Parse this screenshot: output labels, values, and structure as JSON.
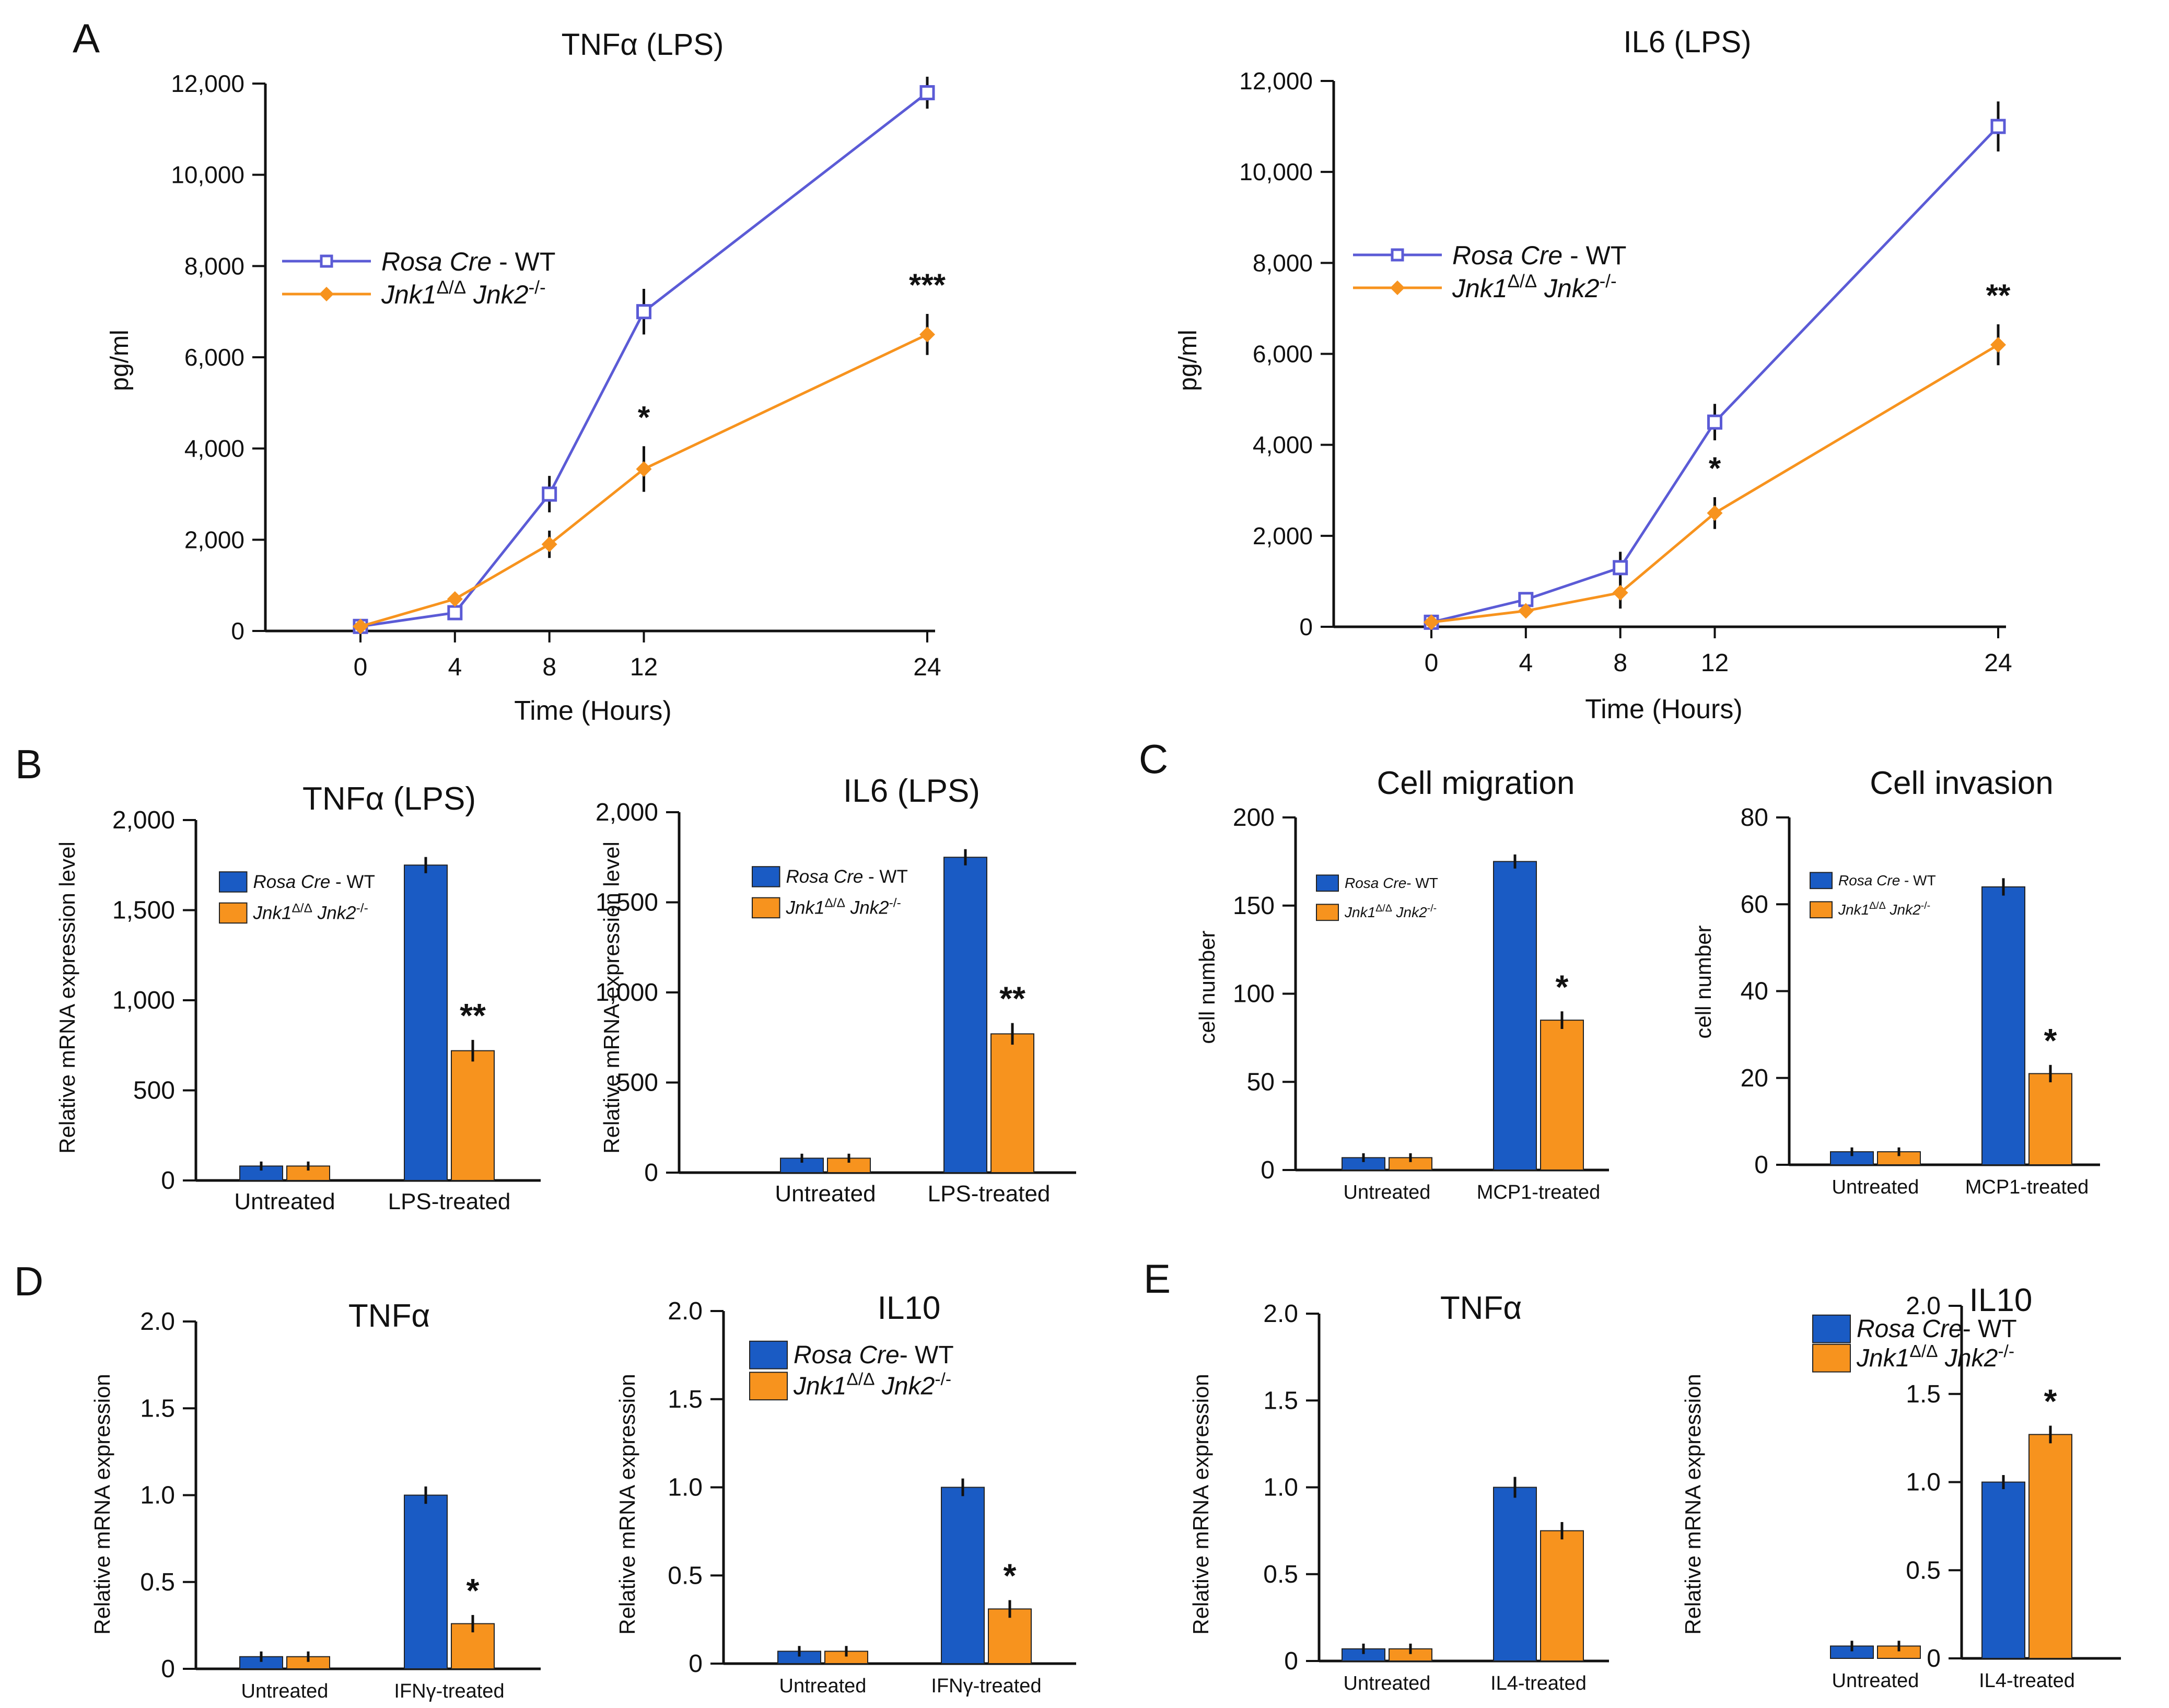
{
  "colors": {
    "wt": "#1a5bc4",
    "ko": "#f7931e",
    "line_wt": "#5b5bd6",
    "line_ko": "#f7931e",
    "axis": "#111111"
  },
  "legend_full": {
    "wt_italic": "Rosa Cre",
    "wt_plain": " - WT",
    "ko_a": "Jnk1",
    "ko_a_sup": "Δ/Δ",
    "ko_b": " Jnk2",
    "ko_b_sup": "-/-"
  },
  "legend_tight": {
    "wt_italic": "Rosa Cre",
    "wt_plain": "- WT",
    "ko_a": "Jnk1",
    "ko_a_sup": "Δ/Δ",
    "ko_b": " Jnk2",
    "ko_b_sup": "-/-"
  },
  "chart_data": [
    {
      "panel_letter": "A",
      "type": "line",
      "title": "TNFα (LPS)",
      "xlabel": "Time (Hours)",
      "ylabel": "pg/ml",
      "x": [
        0,
        4,
        8,
        12,
        24
      ],
      "xlim": [
        -4,
        25
      ],
      "ylim": [
        0,
        12000
      ],
      "y_ticks": [
        0,
        2000,
        4000,
        6000,
        8000,
        10000,
        12000
      ],
      "y_tick_labels": [
        "0",
        "2,000",
        "4,000",
        "6,000",
        "8,000",
        "10,000",
        "12,000"
      ],
      "legend_style": "full",
      "series": [
        {
          "name": "Rosa Cre - WT",
          "values": [
            100,
            400,
            3000,
            7000,
            11800
          ],
          "errors": [
            80,
            120,
            400,
            500,
            350
          ]
        },
        {
          "name": "Jnk1Δ/Δ Jnk2-/-",
          "values": [
            100,
            700,
            1900,
            3550,
            6500
          ],
          "errors": [
            80,
            100,
            300,
            500,
            450
          ]
        }
      ],
      "significance": [
        {
          "x": 12,
          "label": "*"
        },
        {
          "x": 24,
          "label": "***"
        }
      ]
    },
    {
      "panel_letter": "",
      "type": "line",
      "title": "IL6 (LPS)",
      "xlabel": "Time (Hours)",
      "ylabel": "pg/ml",
      "x": [
        0,
        4,
        8,
        12,
        24
      ],
      "xlim": [
        -4,
        25
      ],
      "ylim": [
        0,
        12000
      ],
      "y_ticks": [
        0,
        2000,
        4000,
        6000,
        8000,
        10000,
        12000
      ],
      "y_tick_labels": [
        "0",
        "2,000",
        "4,000",
        "6,000",
        "8,000",
        "10,000",
        "12,000"
      ],
      "legend_style": "full",
      "series": [
        {
          "name": "Rosa Cre - WT",
          "values": [
            100,
            600,
            1300,
            4500,
            11000
          ],
          "errors": [
            80,
            100,
            350,
            400,
            550
          ]
        },
        {
          "name": "Jnk1Δ/Δ Jnk2-/-",
          "values": [
            100,
            350,
            750,
            2500,
            6200
          ],
          "errors": [
            80,
            100,
            350,
            350,
            450
          ]
        }
      ],
      "significance": [
        {
          "x": 12,
          "label": "*"
        },
        {
          "x": 24,
          "label": "**"
        }
      ]
    },
    {
      "panel_letter": "B",
      "type": "bar",
      "title": "TNFα (LPS)",
      "xlabel": "",
      "ylabel": "Relative mRNA expression level",
      "categories": [
        "Untreated",
        "LPS-treated"
      ],
      "ylim": [
        0,
        2000
      ],
      "y_ticks": [
        0,
        500,
        1000,
        1500,
        2000
      ],
      "y_tick_labels": [
        "0",
        "500",
        "1,000",
        "1,500",
        "2,000"
      ],
      "legend_style": "full",
      "series": [
        {
          "name": "Rosa Cre - WT",
          "values": [
            80,
            1750
          ],
          "errors": [
            25,
            45
          ]
        },
        {
          "name": "Jnk1Δ/Δ Jnk2-/-",
          "values": [
            80,
            720
          ],
          "errors": [
            25,
            60
          ]
        }
      ],
      "significance": [
        {
          "category": 1,
          "series": 1,
          "label": "**"
        }
      ]
    },
    {
      "panel_letter": "",
      "type": "bar",
      "title": "IL6 (LPS)",
      "xlabel": "",
      "ylabel": "Relative mRNA expression level",
      "categories": [
        "Untreated",
        "LPS-treated"
      ],
      "ylim": [
        0,
        2000
      ],
      "y_ticks": [
        0,
        500,
        1000,
        1500,
        2000
      ],
      "y_tick_labels": [
        "0",
        "500",
        "1,000",
        "1,500",
        "2,000"
      ],
      "legend_style": "full",
      "series": [
        {
          "name": "Rosa Cre - WT",
          "values": [
            80,
            1750
          ],
          "errors": [
            25,
            45
          ]
        },
        {
          "name": "Jnk1Δ/Δ Jnk2-/-",
          "values": [
            80,
            770
          ],
          "errors": [
            25,
            60
          ]
        }
      ],
      "significance": [
        {
          "category": 1,
          "series": 1,
          "label": "**"
        }
      ]
    },
    {
      "panel_letter": "C",
      "type": "bar",
      "title": "Cell migration",
      "xlabel": "",
      "ylabel": "cell number",
      "categories": [
        "Untreated",
        "MCP1-treated"
      ],
      "ylim": [
        0,
        200
      ],
      "y_ticks": [
        0,
        50,
        100,
        150,
        200
      ],
      "y_tick_labels": [
        "0",
        "50",
        "100",
        "150",
        "200"
      ],
      "legend_style": "tight",
      "series": [
        {
          "name": "Rosa Cre- WT",
          "values": [
            7,
            175
          ],
          "errors": [
            2.5,
            4
          ]
        },
        {
          "name": "Jnk1Δ/Δ Jnk2-/-",
          "values": [
            7,
            85
          ],
          "errors": [
            2.5,
            5
          ]
        }
      ],
      "significance": [
        {
          "category": 1,
          "series": 1,
          "label": "*"
        }
      ]
    },
    {
      "panel_letter": "",
      "type": "bar",
      "title": "Cell invasion",
      "xlabel": "",
      "ylabel": "cell number",
      "categories": [
        "Untreated",
        "MCP1-treated"
      ],
      "ylim": [
        0,
        80
      ],
      "y_ticks": [
        0,
        20,
        40,
        60,
        80
      ],
      "y_tick_labels": [
        "0",
        "20",
        "40",
        "60",
        "80"
      ],
      "legend_style": "full",
      "series": [
        {
          "name": "Rosa Cre - WT",
          "values": [
            3,
            64
          ],
          "errors": [
            1,
            2
          ]
        },
        {
          "name": "Jnk1Δ/Δ Jnk2-/-",
          "values": [
            3,
            21
          ],
          "errors": [
            1,
            2
          ]
        }
      ],
      "significance": [
        {
          "category": 1,
          "series": 1,
          "label": "*"
        }
      ]
    },
    {
      "panel_letter": "D",
      "type": "bar",
      "title": "TNFα",
      "xlabel": "",
      "ylabel": "Relative mRNA expression",
      "categories": [
        "Untreated",
        "IFNγ-treated"
      ],
      "ylim": [
        0,
        2.0
      ],
      "y_ticks": [
        0,
        0.5,
        1.0,
        1.5,
        2.0
      ],
      "y_tick_labels": [
        "0",
        "0.5",
        "1.0",
        "1.5",
        "2.0"
      ],
      "legend_style": "none",
      "series": [
        {
          "name": "Rosa Cre- WT",
          "values": [
            0.07,
            1.0
          ],
          "errors": [
            0.03,
            0.05
          ]
        },
        {
          "name": "Jnk1Δ/Δ Jnk2-/-",
          "values": [
            0.07,
            0.26
          ],
          "errors": [
            0.03,
            0.05
          ]
        }
      ],
      "significance": [
        {
          "category": 1,
          "series": 1,
          "label": "*"
        }
      ]
    },
    {
      "panel_letter": "",
      "type": "bar",
      "title": "IL10",
      "xlabel": "",
      "ylabel": "Relative mRNA expression",
      "categories": [
        "Untreated",
        "IFNγ-treated"
      ],
      "ylim": [
        0,
        2.0
      ],
      "y_ticks": [
        0,
        0.5,
        1.0,
        1.5,
        2.0
      ],
      "y_tick_labels": [
        "0",
        "0.5",
        "1.0",
        "1.5",
        "2.0"
      ],
      "legend_style": "tight",
      "series": [
        {
          "name": "Rosa Cre- WT",
          "values": [
            0.07,
            1.0
          ],
          "errors": [
            0.03,
            0.05
          ]
        },
        {
          "name": "Jnk1Δ/Δ Jnk2-/-",
          "values": [
            0.07,
            0.31
          ],
          "errors": [
            0.03,
            0.05
          ]
        }
      ],
      "significance": [
        {
          "category": 1,
          "series": 1,
          "label": "*"
        }
      ]
    },
    {
      "panel_letter": "E",
      "type": "bar",
      "title": "TNFα",
      "xlabel": "",
      "ylabel": "Relative mRNA expression",
      "categories": [
        "Untreated",
        "IL4-treated"
      ],
      "ylim": [
        0,
        2.0
      ],
      "y_ticks": [
        0,
        0.5,
        1.0,
        1.5,
        2.0
      ],
      "y_tick_labels": [
        "0",
        "0.5",
        "1.0",
        "1.5",
        "2.0"
      ],
      "legend_style": "none",
      "series": [
        {
          "name": "Rosa Cre- WT",
          "values": [
            0.07,
            1.0
          ],
          "errors": [
            0.03,
            0.06
          ]
        },
        {
          "name": "Jnk1Δ/Δ Jnk2-/-",
          "values": [
            0.07,
            0.75
          ],
          "errors": [
            0.03,
            0.05
          ]
        }
      ],
      "significance": []
    },
    {
      "panel_letter": "",
      "type": "bar",
      "title": "IL10",
      "xlabel": "",
      "ylabel": "Relative mRNA expression",
      "categories": [
        "Untreated",
        "IL4-treated"
      ],
      "ylim": [
        0,
        2.0
      ],
      "y_ticks": [
        0,
        0.5,
        1.0,
        1.5,
        2.0
      ],
      "y_tick_labels": [
        "0",
        "0.5",
        "1.0",
        "1.5",
        "2.0"
      ],
      "legend_style": "tight",
      "series": [
        {
          "name": "Rosa Cre- WT",
          "values": [
            0.07,
            1.0
          ],
          "errors": [
            0.03,
            0.04
          ]
        },
        {
          "name": "Jnk1Δ/Δ Jnk2-/-",
          "values": [
            0.07,
            1.27
          ],
          "errors": [
            0.03,
            0.05
          ]
        }
      ],
      "significance": [
        {
          "category": 1,
          "series": 1,
          "label": "*"
        }
      ]
    }
  ]
}
